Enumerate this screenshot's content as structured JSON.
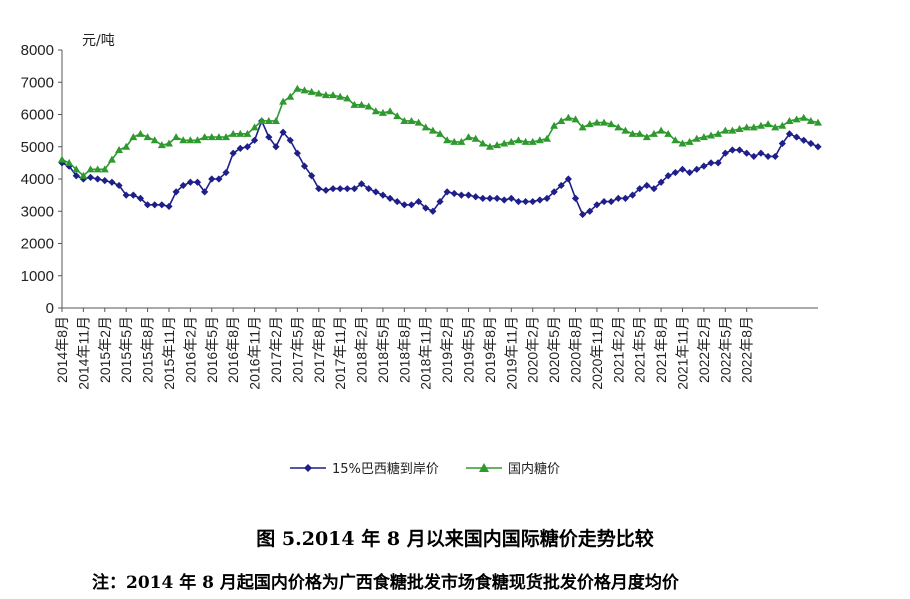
{
  "figure": {
    "caption": "图 5.2014 年 8 月以来国内国际糖价走势比较",
    "note": "注：2014 年 8 月起国内价格为广西食糖批发市场食糖现货批发价格月度均价"
  },
  "colors": {
    "series1": "#1f1f8a",
    "series2": "#2e9a2e",
    "axis": "#555555"
  },
  "chart_data": {
    "type": "line",
    "ylabel": "元/吨",
    "xlabel": "",
    "ylim": [
      0,
      8000
    ],
    "yticks": [
      0,
      1000,
      2000,
      3000,
      4000,
      5000,
      6000,
      7000,
      8000
    ],
    "xtick_labels": [
      "2014年8月",
      "2014年11月",
      "2015年2月",
      "2015年5月",
      "2015年8月",
      "2015年11月",
      "2016年2月",
      "2016年5月",
      "2016年8月",
      "2016年11月",
      "2017年2月",
      "2017年5月",
      "2017年8月",
      "2017年11月",
      "2018年2月",
      "2018年5月",
      "2018年8月",
      "2018年11月",
      "2019年2月",
      "2019年5月",
      "2019年8月",
      "2019年11月",
      "2020年2月",
      "2020年5月",
      "2020年8月",
      "2020年11月",
      "2021年2月",
      "2021年5月",
      "2021年8月",
      "2021年11月",
      "2022年2月",
      "2022年5月",
      "2022年8月"
    ],
    "grid": false,
    "legend_position": "bottom",
    "series": [
      {
        "name": "15%巴西糖到岸价",
        "marker": "diamond",
        "values": [
          4500,
          4400,
          4100,
          4000,
          4050,
          4000,
          3950,
          3900,
          3800,
          3500,
          3500,
          3400,
          3200,
          3200,
          3200,
          3150,
          3600,
          3800,
          3900,
          3900,
          3600,
          4000,
          4000,
          4200,
          4800,
          4950,
          5000,
          5200,
          5800,
          5300,
          5000,
          5450,
          5200,
          4800,
          4400,
          4100,
          3700,
          3650,
          3700,
          3700,
          3700,
          3700,
          3850,
          3700,
          3600,
          3500,
          3400,
          3300,
          3200,
          3200,
          3300,
          3100,
          3000,
          3300,
          3600,
          3550,
          3500,
          3500,
          3450,
          3400,
          3400,
          3400,
          3350,
          3400,
          3300,
          3300,
          3300,
          3350,
          3400,
          3600,
          3800,
          4000,
          3400,
          2900,
          3000,
          3200,
          3300,
          3300,
          3400,
          3400,
          3500,
          3700,
          3800,
          3700,
          3900,
          4100,
          4200,
          4300,
          4200,
          4300,
          4400,
          4500,
          4500,
          4800,
          4900,
          4900,
          4800,
          4700,
          4800,
          4700,
          4700,
          5100,
          5400,
          5300,
          5200,
          5100,
          5000
        ]
      },
      {
        "name": "国内糖价",
        "marker": "triangle",
        "values": [
          4600,
          4500,
          4300,
          4100,
          4300,
          4300,
          4300,
          4600,
          4900,
          5000,
          5300,
          5400,
          5300,
          5200,
          5050,
          5100,
          5300,
          5200,
          5200,
          5200,
          5300,
          5300,
          5300,
          5300,
          5400,
          5400,
          5400,
          5600,
          5800,
          5800,
          5800,
          6400,
          6550,
          6800,
          6750,
          6700,
          6650,
          6600,
          6600,
          6550,
          6500,
          6300,
          6300,
          6250,
          6100,
          6050,
          6100,
          5950,
          5800,
          5800,
          5750,
          5600,
          5500,
          5400,
          5200,
          5150,
          5150,
          5300,
          5250,
          5100,
          5000,
          5050,
          5100,
          5150,
          5200,
          5150,
          5150,
          5200,
          5250,
          5650,
          5800,
          5900,
          5850,
          5600,
          5700,
          5750,
          5750,
          5700,
          5600,
          5500,
          5400,
          5400,
          5300,
          5400,
          5500,
          5400,
          5200,
          5100,
          5150,
          5250,
          5300,
          5350,
          5400,
          5500,
          5500,
          5550,
          5600,
          5600,
          5650,
          5700,
          5600,
          5650,
          5800,
          5850,
          5900,
          5800,
          5750
        ]
      }
    ]
  }
}
